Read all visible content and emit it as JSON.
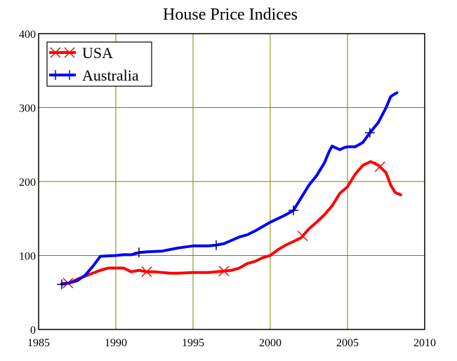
{
  "chart_data": {
    "type": "line",
    "title": "House Price Indices",
    "xlabel": "",
    "ylabel": "",
    "xlim": [
      1985,
      2010
    ],
    "ylim": [
      0,
      400
    ],
    "xticks": [
      1985,
      1990,
      1995,
      2000,
      2005,
      2010
    ],
    "yticks": [
      0,
      100,
      200,
      300,
      400
    ],
    "grid": true,
    "grid_color": "#808000",
    "legend_position": "top-left",
    "series": [
      {
        "name": "USA",
        "color": "#ff0000",
        "marker": "x",
        "marker_x": [
          1986.9,
          1992,
          1997,
          2002.1,
          2007.1
        ],
        "x": [
          1986.5,
          1987,
          1987.5,
          1988,
          1988.5,
          1989,
          1989.5,
          1990,
          1990.5,
          1991,
          1991.5,
          1992,
          1992.5,
          1993,
          1993.5,
          1994,
          1995,
          1996,
          1997,
          1997.5,
          1998,
          1998.5,
          1999,
          1999.5,
          2000,
          2000.5,
          2001,
          2001.5,
          2002,
          2002.5,
          2003,
          2003.5,
          2004,
          2004.5,
          2005,
          2005.5,
          2006,
          2006.5,
          2007,
          2007.5,
          2007.8,
          2008.1,
          2008.45
        ],
        "y": [
          62,
          63,
          68,
          72,
          76,
          80,
          83,
          83,
          83,
          78,
          80,
          78,
          78,
          77,
          76,
          76,
          77,
          77,
          79,
          80,
          83,
          89,
          92,
          97,
          100,
          108,
          114,
          119,
          124,
          136,
          145,
          155,
          167,
          184,
          193,
          210,
          222,
          227,
          222,
          212,
          195,
          185,
          182
        ]
      },
      {
        "name": "Australia",
        "color": "#0000ff",
        "marker": "+",
        "marker_x": [
          1986.5,
          1991.5,
          1996.5,
          2001.5,
          2006.45
        ],
        "x": [
          1986.5,
          1987,
          1987.5,
          1988,
          1988.5,
          1989,
          1990,
          1990.5,
          1991,
          1991.5,
          1992,
          1993,
          1994,
          1995,
          1996,
          1996.5,
          1997,
          1998,
          1998.5,
          1999,
          1999.5,
          2000,
          2000.5,
          2001,
          2001.5,
          2002,
          2002.5,
          2003,
          2003.5,
          2003.8,
          2004,
          2004.5,
          2004.8,
          2005,
          2005.5,
          2006,
          2006.45,
          2007,
          2007.5,
          2007.8,
          2008.1,
          2008.2
        ],
        "y": [
          61,
          63,
          66,
          73,
          85,
          99,
          100,
          101,
          101,
          104,
          105,
          106,
          110,
          113,
          113,
          114,
          116,
          125,
          128,
          133,
          139,
          145,
          150,
          155,
          161,
          178,
          195,
          208,
          225,
          240,
          248,
          243,
          246,
          247,
          247,
          253,
          266,
          280,
          300,
          315,
          319,
          320
        ]
      }
    ]
  }
}
